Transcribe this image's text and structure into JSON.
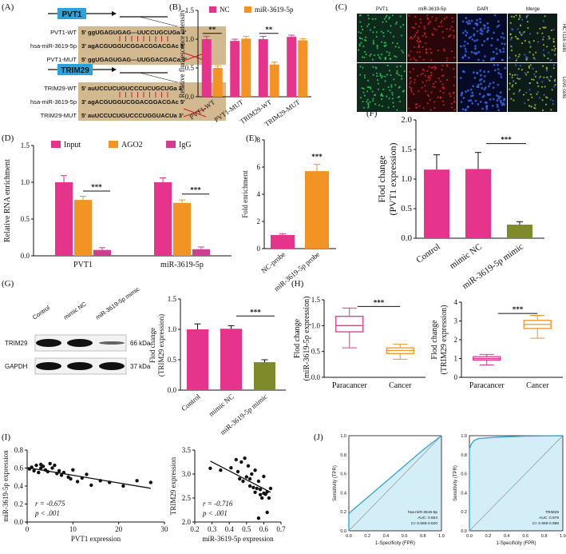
{
  "colors": {
    "pink": "#e6348d",
    "orange": "#f39323",
    "olive": "#7f8a2a",
    "magenta": "#cf3f8f",
    "roc": "#3aa6d6",
    "rocfill": "#d4eef8",
    "scatter": "#111111"
  },
  "panels": {
    "A": {
      "label": "(A)",
      "pvt1_box": "PVT1",
      "trim29_box": "TRIM29",
      "rows_pvt1": [
        {
          "name": "PVT1-WT",
          "seq": "5' ggUGAGUGAG---UUCCUGCUGa 3'"
        },
        {
          "name": "hsa-miR-3619-5p",
          "seq": "3' agACGUGGUCGGACGGACGAc 5'"
        },
        {
          "name": "PVT1-MUT",
          "seq": "5' ggUGAGUGAG---UUGGACGACa 3'"
        }
      ],
      "rows_trim29": [
        {
          "name": "TRIM29-WT",
          "seq": "5' auUCCUCUGUCCCUCUGCUGa 3'"
        },
        {
          "name": "hsa-miR-3619-5p",
          "seq": "3' agACGUGGUCGGACGGACGAc 5'"
        },
        {
          "name": "TRIM29-MUT",
          "seq": "5' auUCCUCUGUCCCUGGUACUa 3'"
        }
      ]
    },
    "B": {
      "label": "(B)"
    },
    "C": {
      "label": "(C)",
      "cols": [
        "PVT1",
        "miR-3619-5p",
        "DAPI",
        "Merge"
      ],
      "rows": [
        "HCT116 cells",
        "LoVo cells"
      ]
    },
    "D": {
      "label": "(D)"
    },
    "E": {
      "label": "(E)"
    },
    "F": {
      "label": "(F)"
    },
    "G": {
      "label": "(G)",
      "lanes": [
        "Control",
        "mimic NC",
        "miR-3619-5p mimic"
      ],
      "blots": [
        {
          "name": "TRIM29",
          "kda": "66 kDa"
        },
        {
          "name": "GAPDH",
          "kda": "37 kDa"
        }
      ]
    },
    "H": {
      "label": "(H)"
    },
    "I": {
      "label": "(I)"
    },
    "J": {
      "label": "(J)"
    }
  },
  "chart_data": [
    {
      "id": "B",
      "type": "bar",
      "ylabel": "Relative fluorescence intensity",
      "categories": [
        "PVT1-WT",
        "PVT1-MUT",
        "TRIM29-WT",
        "TRIM29-MUT"
      ],
      "series": [
        {
          "name": "NC",
          "values": [
            1.0,
            0.97,
            1.0,
            1.04
          ]
        },
        {
          "name": "miR-3619-5p",
          "values": [
            0.5,
            1.01,
            0.56,
            0.98
          ]
        }
      ],
      "errors": [
        [
          0.05,
          0.03,
          0.05,
          0.03
        ],
        [
          0.04,
          0.04,
          0.04,
          0.03
        ]
      ],
      "ylim": [
        0,
        1.5
      ],
      "yticks": [
        "0.0",
        "0.5",
        "1.0",
        "1.5"
      ],
      "annotations": [
        "**",
        "**"
      ]
    },
    {
      "id": "D",
      "type": "bar",
      "ylabel": "Relative RNA enrichment",
      "categories": [
        "PVT1",
        "miR-3619-5p"
      ],
      "series": [
        {
          "name": "Input",
          "values": [
            1.0,
            1.0
          ]
        },
        {
          "name": "AGO2",
          "values": [
            0.76,
            0.72
          ]
        },
        {
          "name": "IgG",
          "values": [
            0.08,
            0.09
          ]
        }
      ],
      "errors": [
        [
          0.09,
          0.06
        ],
        [
          0.05,
          0.04
        ],
        [
          0.03,
          0.03
        ]
      ],
      "ylim": [
        0,
        1.5
      ],
      "yticks": [
        "0.0",
        "0.5",
        "1.0",
        "1.5"
      ],
      "annotations": [
        "***",
        "***"
      ]
    },
    {
      "id": "E",
      "type": "bar",
      "ylabel": "Fold enrichment",
      "categories": [
        "NC-probe",
        "miR-3619-5p probe"
      ],
      "values": [
        1.0,
        5.7
      ],
      "errors": [
        0.1,
        0.5
      ],
      "ylim": [
        0,
        8
      ],
      "yticks": [
        "0",
        "2",
        "4",
        "6",
        "8"
      ],
      "annotations": [
        "***"
      ]
    },
    {
      "id": "F",
      "type": "bar",
      "ylabel": "Flod change",
      "ylabel2": "(PVT1 expression)",
      "categories": [
        "Control",
        "mimic NC",
        "miR-3619-5p mimic"
      ],
      "values": [
        1.16,
        1.17,
        0.23
      ],
      "errors": [
        0.25,
        0.28,
        0.05
      ],
      "ylim": [
        0,
        2.0
      ],
      "yticks": [
        "0.0",
        "0.5",
        "1.0",
        "1.5",
        "2.0"
      ],
      "annotations": [
        "***"
      ]
    },
    {
      "id": "G",
      "type": "bar",
      "ylabel": "Flod change",
      "ylabel2": "(TRIM29 expression)",
      "categories": [
        "Control",
        "mimic NC",
        "miR-3619-5p mimic"
      ],
      "values": [
        1.0,
        1.01,
        0.46
      ],
      "errors": [
        0.09,
        0.05,
        0.04
      ],
      "ylim": [
        0,
        1.5
      ],
      "yticks": [
        "0.0",
        "0.5",
        "1.0",
        "1.5"
      ],
      "annotations": [
        "***"
      ]
    },
    {
      "id": "H1",
      "type": "box",
      "ylabel": "Flod change",
      "ylabel2": "(miR-3619-5p expression)",
      "categories": [
        "Paracancer",
        "Cancer"
      ],
      "boxes": [
        {
          "min": 0.57,
          "q1": 0.88,
          "median": 1.0,
          "q3": 1.18,
          "max": 1.34
        },
        {
          "min": 0.35,
          "q1": 0.46,
          "median": 0.52,
          "q3": 0.57,
          "max": 0.64
        }
      ],
      "ylim": [
        0,
        1.5
      ],
      "yticks": [
        "0.0",
        "0.5",
        "1.0",
        "1.5"
      ],
      "annotations": [
        "***"
      ]
    },
    {
      "id": "H2",
      "type": "box",
      "ylabel": "Flod change",
      "ylabel2": "(TRIM29 expression)",
      "categories": [
        "Paracancer",
        "Cancer"
      ],
      "boxes": [
        {
          "min": 0.66,
          "q1": 0.92,
          "median": 1.0,
          "q3": 1.1,
          "max": 1.22
        },
        {
          "min": 2.08,
          "q1": 2.6,
          "median": 2.82,
          "q3": 3.03,
          "max": 3.3
        }
      ],
      "ylim": [
        0,
        4
      ],
      "yticks": [
        "0",
        "1",
        "2",
        "3",
        "4"
      ],
      "annotations": [
        "***"
      ]
    },
    {
      "id": "I1",
      "type": "scatter",
      "xlabel": "PVT1 expression",
      "ylabel": "miR-3619-5p expression",
      "xlim": [
        0,
        30
      ],
      "ylim": [
        0,
        0.8
      ],
      "xticks": [
        "0",
        "10",
        "20",
        "30"
      ],
      "yticks": [
        "0.0",
        "0.2",
        "0.4",
        "0.6",
        "0.8"
      ],
      "r": "r = -0.675",
      "p": "p < .001",
      "x": [
        0.5,
        1,
        1.5,
        2,
        2.5,
        3,
        3,
        3.5,
        4,
        4.5,
        5,
        5.5,
        6,
        6.5,
        7,
        8,
        9,
        10,
        11,
        12,
        13,
        14,
        16,
        18,
        21,
        24,
        27,
        9.5,
        7.5
      ],
      "y": [
        0.59,
        0.61,
        0.57,
        0.63,
        0.55,
        0.64,
        0.6,
        0.62,
        0.58,
        0.56,
        0.65,
        0.6,
        0.63,
        0.54,
        0.57,
        0.55,
        0.5,
        0.58,
        0.45,
        0.49,
        0.53,
        0.41,
        0.46,
        0.44,
        0.4,
        0.46,
        0.44,
        0.48,
        0.52
      ],
      "fit": [
        [
          0,
          0.605
        ],
        [
          27,
          0.375
        ]
      ]
    },
    {
      "id": "I2",
      "type": "scatter",
      "xlabel": "miR-3619-5p expression",
      "ylabel": "TRIM29 expression",
      "xlim": [
        0.2,
        0.7
      ],
      "ylim": [
        2.0,
        3.5
      ],
      "xticks": [
        "0.2",
        "0.3",
        "0.4",
        "0.5",
        "0.6",
        "0.7"
      ],
      "yticks": [
        "2.0",
        "2.5",
        "3.0",
        "3.5"
      ],
      "r": "r = -0.716",
      "p": "p < .001",
      "x": [
        0.29,
        0.35,
        0.41,
        0.44,
        0.45,
        0.47,
        0.48,
        0.49,
        0.5,
        0.51,
        0.52,
        0.53,
        0.54,
        0.55,
        0.55,
        0.56,
        0.57,
        0.58,
        0.58,
        0.59,
        0.6,
        0.6,
        0.61,
        0.62,
        0.62,
        0.63,
        0.64,
        0.57,
        0.46,
        0.52
      ],
      "y": [
        3.12,
        3.08,
        3.13,
        3.3,
        3.05,
        3.25,
        2.85,
        3.33,
        2.94,
        3.17,
        2.9,
        3.0,
        2.72,
        3.08,
        2.62,
        2.7,
        2.85,
        2.57,
        2.68,
        2.5,
        2.95,
        2.6,
        2.58,
        2.63,
        2.2,
        2.5,
        2.7,
        2.08,
        2.9,
        2.75
      ],
      "fit": [
        [
          0.29,
          3.27
        ],
        [
          0.64,
          2.62
        ]
      ]
    },
    {
      "id": "J1",
      "type": "roc",
      "xlabel": "1-Specificity (FPR)",
      "ylabel": "Sensitivity (TPR)",
      "ticks": [
        "0.0",
        "0.2",
        "0.4",
        "0.6",
        "0.8",
        "1.0"
      ],
      "legend": [
        "hsa-miR-3619-5p",
        "AUC: 0.604",
        "CI: 0.588-0.620"
      ],
      "curve": [
        [
          0,
          0
        ],
        [
          0,
          0.18
        ],
        [
          0.02,
          0.2
        ],
        [
          0.2,
          0.35
        ],
        [
          0.5,
          0.6
        ],
        [
          0.8,
          0.85
        ],
        [
          1,
          1
        ]
      ]
    },
    {
      "id": "J2",
      "type": "roc",
      "xlabel": "1-Specificity (FPR)",
      "ylabel": "Sensitivity (TPR)",
      "ticks": [
        "0.0",
        "0.2",
        "0.4",
        "0.6",
        "0.8",
        "1.0"
      ],
      "legend": [
        "TRIM29",
        "AUC: 0.979",
        "CI: 0.969-0.988"
      ],
      "curve": [
        [
          0,
          0
        ],
        [
          0,
          0.86
        ],
        [
          0.02,
          0.91
        ],
        [
          0.05,
          0.95
        ],
        [
          0.1,
          0.97
        ],
        [
          0.3,
          0.985
        ],
        [
          0.6,
          0.995
        ],
        [
          1,
          1
        ]
      ]
    }
  ]
}
